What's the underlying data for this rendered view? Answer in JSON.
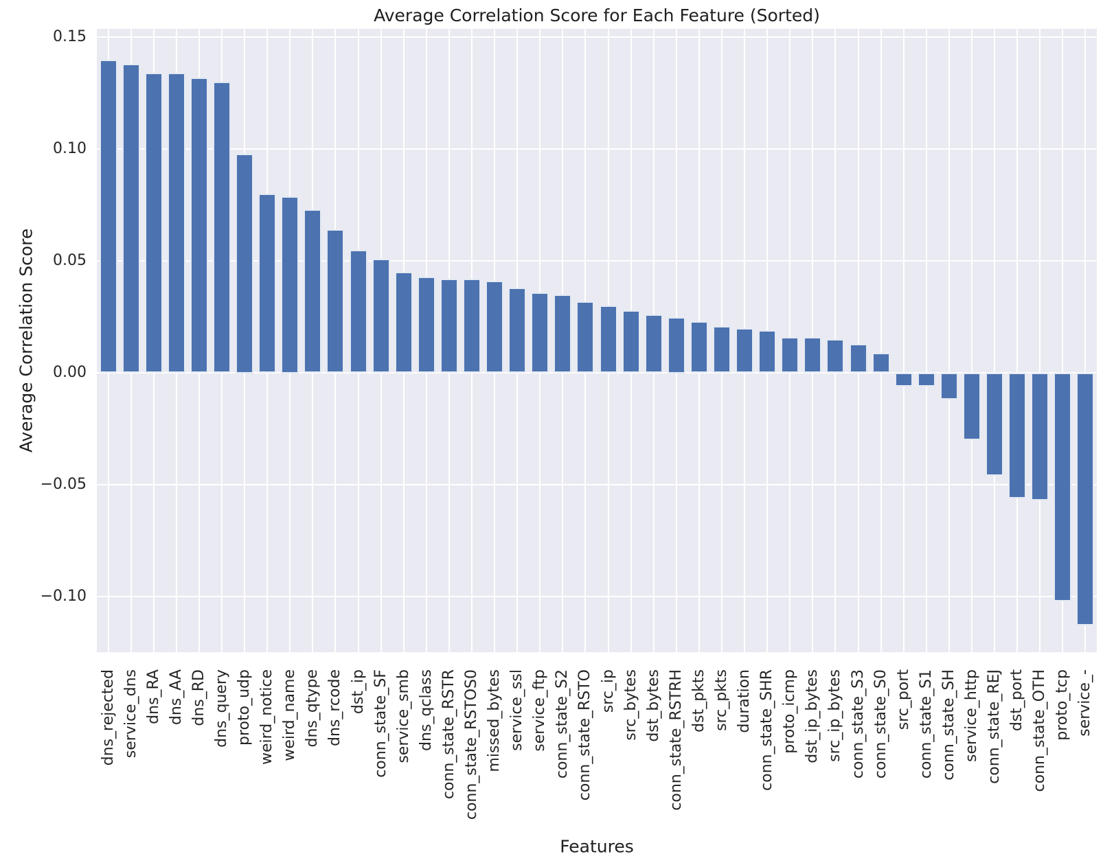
{
  "chart_data": {
    "type": "bar",
    "title": "Average Correlation Score for Each Feature (Sorted)",
    "xlabel": "Features",
    "ylabel": "Average Correlation Score",
    "categories": [
      "dns_rejected",
      "service_dns",
      "dns_RA",
      "dns_AA",
      "dns_RD",
      "dns_query",
      "proto_udp",
      "weird_notice",
      "weird_name",
      "dns_qtype",
      "dns_rcode",
      "dst_ip",
      "conn_state_SF",
      "service_smb",
      "dns_qclass",
      "conn_state_RSTR",
      "conn_state_RSTOS0",
      "missed_bytes",
      "service_ssl",
      "service_ftp",
      "conn_state_S2",
      "conn_state_RSTO",
      "src_ip",
      "src_bytes",
      "dst_bytes",
      "conn_state_RSTRH",
      "dst_pkts",
      "src_pkts",
      "duration",
      "conn_state_SHR",
      "proto_icmp",
      "dst_ip_bytes",
      "src_ip_bytes",
      "conn_state_S3",
      "conn_state_S0",
      "src_port",
      "conn_state_S1",
      "conn_state_SH",
      "service_http",
      "conn_state_REJ",
      "dst_port",
      "conn_state_OTH",
      "proto_tcp",
      "service_-"
    ],
    "values": [
      0.14,
      0.138,
      0.134,
      0.134,
      0.132,
      0.13,
      0.098,
      0.08,
      0.079,
      0.073,
      0.064,
      0.055,
      0.051,
      0.045,
      0.043,
      0.042,
      0.042,
      0.041,
      0.038,
      0.036,
      0.035,
      0.032,
      0.03,
      0.028,
      0.026,
      0.025,
      0.023,
      0.021,
      0.02,
      0.019,
      0.016,
      0.016,
      0.015,
      0.013,
      0.009,
      -0.006,
      -0.006,
      -0.012,
      -0.03,
      -0.046,
      -0.056,
      -0.057,
      -0.102,
      -0.113
    ],
    "yticks": [
      0.15,
      0.1,
      0.05,
      0.0,
      -0.05,
      -0.1
    ],
    "ytick_labels": [
      "0.15",
      "0.10",
      "0.05",
      "0.00",
      "−0.05",
      "−0.10"
    ],
    "ylim": [
      -0.1248,
      0.1537
    ],
    "grid": true,
    "legend_position": "none",
    "bar_color": "#4c72b0",
    "bar_edge_color": "rgba(255,255,255,0.85)",
    "plot_background_color": "#eaeaf2",
    "gridline_color": "#ffffff"
  }
}
